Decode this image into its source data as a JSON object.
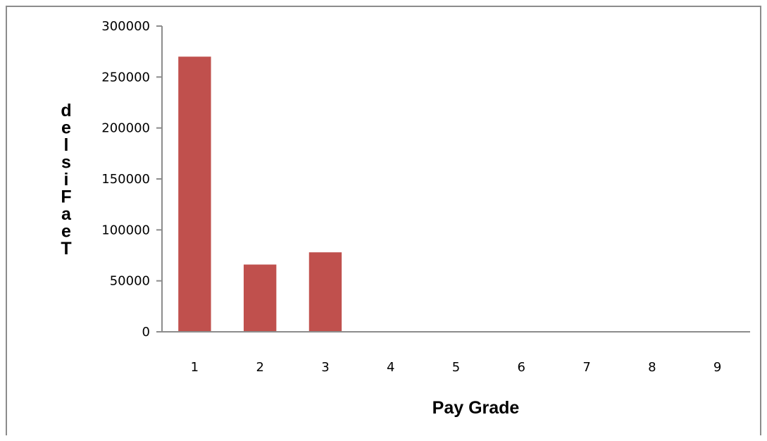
{
  "chart_data": {
    "type": "bar",
    "title": "",
    "xlabel": "Pay Grade",
    "ylabel": "delsiFaeT",
    "categories": [
      "1",
      "2",
      "3",
      "4",
      "5",
      "6",
      "7",
      "8",
      "9"
    ],
    "values": [
      270000,
      66000,
      78000,
      0,
      0,
      0,
      0,
      0,
      0
    ],
    "ylim": [
      0,
      300000
    ],
    "yticks": [
      "0",
      "50000",
      "100000",
      "150000",
      "200000",
      "250000",
      "300000"
    ],
    "grid": false,
    "legend": "none",
    "bar_color": "#c0504d",
    "axis_color": "#8c8c8c"
  }
}
